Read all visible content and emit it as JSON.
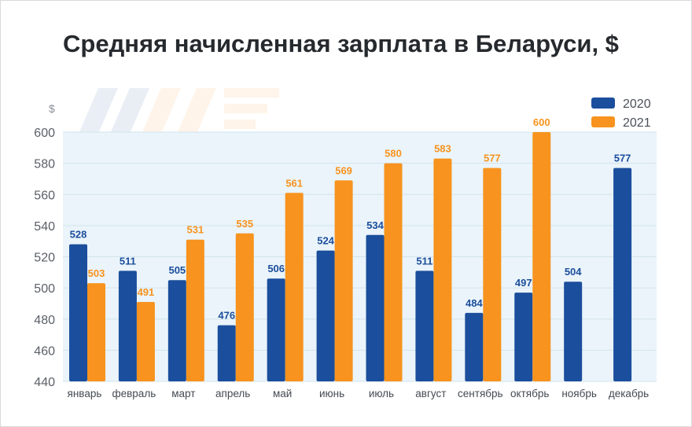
{
  "chart_data": {
    "type": "bar",
    "title": "Средняя начисленная зарплата в Беларуси, $",
    "y_unit_label": "$",
    "xlabel": "",
    "ylabel": "",
    "ylim": [
      440,
      600
    ],
    "yticks": [
      440,
      460,
      480,
      500,
      520,
      540,
      560,
      580,
      600
    ],
    "grid": true,
    "legend_position": "top-right",
    "categories": [
      "январь",
      "февраль",
      "март",
      "апрель",
      "май",
      "июнь",
      "июль",
      "август",
      "сентябрь",
      "октябрь",
      "ноябрь",
      "декабрь"
    ],
    "series": [
      {
        "name": "2020",
        "color": "#1b4e9c",
        "values": [
          528,
          511,
          505,
          476,
          506,
          524,
          534,
          511,
          484,
          497,
          504,
          577
        ]
      },
      {
        "name": "2021",
        "color": "#f7931e",
        "values": [
          503,
          491,
          531,
          535,
          561,
          569,
          580,
          583,
          577,
          600,
          null,
          null
        ]
      }
    ]
  },
  "colors": {
    "plot_background": "#eaf4fa",
    "grid": "#d3e3ee",
    "label_2020": "#1b4e9c",
    "label_2021": "#f7931e"
  }
}
